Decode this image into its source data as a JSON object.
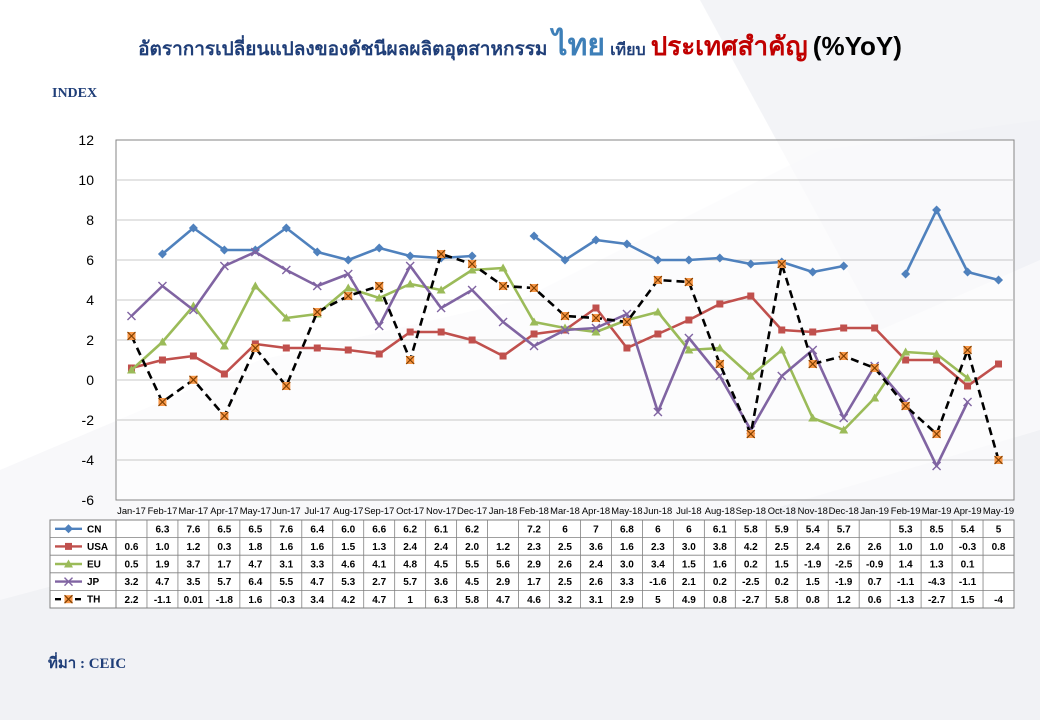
{
  "title": {
    "prefix": "อัตราการเปลี่ยนแปลงของดัชนีผลผลิตอุตสาหกรรม",
    "thai": "ไทย",
    "vs": "เทียบ",
    "major": "ประเทศสำคัญ",
    "unit": "(%YoY)"
  },
  "index_label": "INDEX",
  "source": "ที่มา : CEIC",
  "colors": {
    "CN": "#4f81bd",
    "USA": "#c0504d",
    "EU": "#9bbb59",
    "JP": "#8064a2",
    "TH": "#000000",
    "TH_marker": "#f79646"
  },
  "chart_data": {
    "type": "line",
    "title": "",
    "xlabel": "",
    "ylabel": "INDEX",
    "ylim": [
      -6,
      12
    ],
    "yticks": [
      -6,
      -4,
      -2,
      0,
      2,
      4,
      6,
      8,
      10,
      12
    ],
    "grid": true,
    "legend": "table-below",
    "categories": [
      "Jan-17",
      "Feb-17",
      "Mar-17",
      "Apr-17",
      "May-17",
      "Jun-17",
      "Jul-17",
      "Aug-17",
      "Sep-17",
      "Oct-17",
      "Nov-17",
      "Dec-17",
      "Jan-18",
      "Feb-18",
      "Mar-18",
      "Apr-18",
      "May-18",
      "Jun-18",
      "Jul-18",
      "Aug-18",
      "Sep-18",
      "Oct-18",
      "Nov-18",
      "Dec-18",
      "Jan-19",
      "Feb-19",
      "Mar-19",
      "Apr-19",
      "May-19"
    ],
    "series": [
      {
        "name": "CN",
        "values": [
          null,
          6.3,
          7.6,
          6.5,
          6.5,
          7.6,
          6.4,
          6.0,
          6.6,
          6.2,
          6.1,
          6.2,
          null,
          7.2,
          6,
          7,
          6.8,
          6,
          6,
          6.1,
          5.8,
          5.9,
          5.4,
          5.7,
          null,
          5.3,
          8.5,
          5.4,
          5
        ],
        "labels": [
          "",
          "6.3",
          "7.6",
          "6.5",
          "6.5",
          "7.6",
          "6.4",
          "6.0",
          "6.6",
          "6.2",
          "6.1",
          "6.2",
          "",
          "7.2",
          "6",
          "7",
          "6.8",
          "6",
          "6",
          "6.1",
          "5.8",
          "5.9",
          "5.4",
          "5.7",
          "",
          "5.3",
          "8.5",
          "5.4",
          "5"
        ]
      },
      {
        "name": "USA",
        "values": [
          0.6,
          1.0,
          1.2,
          0.3,
          1.8,
          1.6,
          1.6,
          1.5,
          1.3,
          2.4,
          2.4,
          2.0,
          1.2,
          2.3,
          2.5,
          3.6,
          1.6,
          2.3,
          3.0,
          3.8,
          4.2,
          2.5,
          2.4,
          2.6,
          2.6,
          1.0,
          1.0,
          -0.3,
          0.8
        ],
        "labels": [
          "0.6",
          "1.0",
          "1.2",
          "0.3",
          "1.8",
          "1.6",
          "1.6",
          "1.5",
          "1.3",
          "2.4",
          "2.4",
          "2.0",
          "1.2",
          "2.3",
          "2.5",
          "3.6",
          "1.6",
          "2.3",
          "3.0",
          "3.8",
          "4.2",
          "2.5",
          "2.4",
          "2.6",
          "2.6",
          "1.0",
          "1.0",
          "-0.3",
          "0.8"
        ]
      },
      {
        "name": "EU",
        "values": [
          0.5,
          1.9,
          3.7,
          1.7,
          4.7,
          3.1,
          3.3,
          4.6,
          4.1,
          4.8,
          4.5,
          5.5,
          5.6,
          2.9,
          2.6,
          2.4,
          3.0,
          3.4,
          1.5,
          1.6,
          0.2,
          1.5,
          -1.9,
          -2.5,
          -0.9,
          1.4,
          1.3,
          0.1,
          null
        ],
        "labels": [
          "0.5",
          "1.9",
          "3.7",
          "1.7",
          "4.7",
          "3.1",
          "3.3",
          "4.6",
          "4.1",
          "4.8",
          "4.5",
          "5.5",
          "5.6",
          "2.9",
          "2.6",
          "2.4",
          "3.0",
          "3.4",
          "1.5",
          "1.6",
          "0.2",
          "1.5",
          "-1.9",
          "-2.5",
          "-0.9",
          "1.4",
          "1.3",
          "0.1",
          ""
        ]
      },
      {
        "name": "JP",
        "values": [
          3.2,
          4.7,
          3.5,
          5.7,
          6.4,
          5.5,
          4.7,
          5.3,
          2.7,
          5.7,
          3.6,
          4.5,
          2.9,
          1.7,
          2.5,
          2.6,
          3.3,
          -1.6,
          2.1,
          0.2,
          -2.5,
          0.2,
          1.5,
          -1.9,
          0.7,
          -1.1,
          -4.3,
          -1.1,
          null
        ],
        "labels": [
          "3.2",
          "4.7",
          "3.5",
          "5.7",
          "6.4",
          "5.5",
          "4.7",
          "5.3",
          "2.7",
          "5.7",
          "3.6",
          "4.5",
          "2.9",
          "1.7",
          "2.5",
          "2.6",
          "3.3",
          "-1.6",
          "2.1",
          "0.2",
          "-2.5",
          "0.2",
          "1.5",
          "-1.9",
          "0.7",
          "-1.1",
          "-4.3",
          "-1.1",
          ""
        ]
      },
      {
        "name": "TH",
        "values": [
          2.2,
          -1.1,
          0.01,
          -1.8,
          1.6,
          -0.3,
          3.4,
          4.2,
          4.7,
          1,
          6.3,
          5.8,
          4.7,
          4.6,
          3.2,
          3.1,
          2.9,
          5,
          4.9,
          0.8,
          -2.7,
          5.8,
          0.8,
          1.2,
          0.6,
          -1.3,
          -2.7,
          1.5,
          -4
        ],
        "labels": [
          "2.2",
          "-1.1",
          "0.01",
          "-1.8",
          "1.6",
          "-0.3",
          "3.4",
          "4.2",
          "4.7",
          "1",
          "6.3",
          "5.8",
          "4.7",
          "4.6",
          "3.2",
          "3.1",
          "2.9",
          "5",
          "4.9",
          "0.8",
          "-2.7",
          "5.8",
          "0.8",
          "1.2",
          "0.6",
          "-1.3",
          "-2.7",
          "1.5",
          "-4"
        ]
      }
    ]
  }
}
